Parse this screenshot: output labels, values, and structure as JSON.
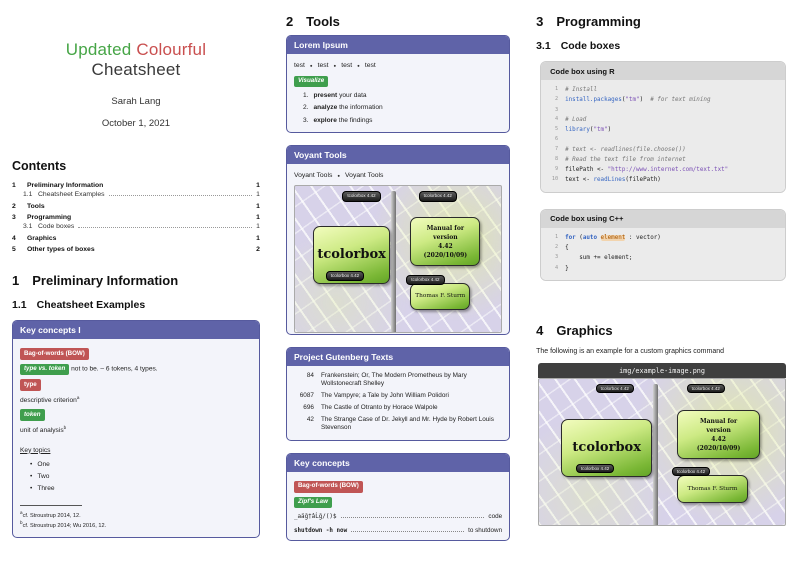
{
  "page": {
    "title_word1": "Updated",
    "title_word2": "Colourful",
    "title_line2": "Cheatsheet",
    "author": "Sarah Lang",
    "date": "October 1, 2021"
  },
  "contents": {
    "heading": "Contents",
    "entries": [
      {
        "num": "1",
        "label": "Preliminary Information",
        "page": "1"
      },
      {
        "num": "1.1",
        "label": "Cheatsheet Examples",
        "page": "1"
      },
      {
        "num": "2",
        "label": "Tools",
        "page": "1"
      },
      {
        "num": "3",
        "label": "Programming",
        "page": "1"
      },
      {
        "num": "3.1",
        "label": "Code boxes",
        "page": "1"
      },
      {
        "num": "4",
        "label": "Graphics",
        "page": "1"
      },
      {
        "num": "5",
        "label": "Other types of boxes",
        "page": "2"
      }
    ]
  },
  "section1": {
    "number": "1",
    "title": "Preliminary Information",
    "sub_number": "1.1",
    "sub_title": "Cheatsheet Examples"
  },
  "key_concepts_1": {
    "title": "Key concepts I",
    "badge_bow": "Bag-of-words (BOW)",
    "badge_type_token": "type vs. token",
    "type_token_text": "not to be. – 6 tokens, 4 types.",
    "badge_type": "type",
    "type_text": "descriptive criterion",
    "type_fn_mark": "a",
    "badge_token": "token",
    "token_text": "unit of analysis",
    "token_fn_mark": "b",
    "key_topics_label": "Key topics",
    "topics": [
      "One",
      "Two",
      "Three"
    ],
    "footnote_a_mark": "a",
    "footnote_a": "cf. Stroustrup 2014, 12.",
    "footnote_b_mark": "b",
    "footnote_b": "cf. Stroustrup 2014; Wu 2016, 12."
  },
  "section2": {
    "number": "2",
    "title": "Tools"
  },
  "lorem_box": {
    "title": "Lorem Ipsum",
    "test_items": [
      "test",
      "test",
      "test",
      "test"
    ],
    "badge_visualize": "Visualize",
    "steps": [
      {
        "num": "1.",
        "bold": "present",
        "rest": " your data"
      },
      {
        "num": "2.",
        "bold": "analyze",
        "rest": " the information"
      },
      {
        "num": "3.",
        "bold": "explore",
        "rest": " the findings"
      }
    ]
  },
  "voyant_box": {
    "title": "Voyant Tools",
    "links": [
      "Voyant Tools",
      "Voyant Tools"
    ]
  },
  "tcolorbox_image": {
    "main_label": "tcolorbox",
    "manual_line1": "Manual for",
    "manual_line2": "version",
    "manual_line3": "4.42",
    "manual_line4": "(2020/10/09)",
    "author": "Thomas F. Sturm",
    "pill1": "tcolorbox 4.42",
    "pill2": "tcolorbox 4.42",
    "pill3": "tcolorbox 4.42",
    "pill4": "tcolorbox 4.42"
  },
  "gutenberg_box": {
    "title": "Project Gutenberg Texts",
    "rows": [
      {
        "id": "84",
        "text": "Frankenstein; Or, The Modern Prometheus by Mary Wollstonecraft Shelley"
      },
      {
        "id": "6087",
        "text": "The Vampyre; a Tale by John William Polidori"
      },
      {
        "id": "696",
        "text": "The Castle of Otranto by Horace Walpole"
      },
      {
        "id": "42",
        "text": "The Strange Case of Dr. Jekyll and Mr. Hyde by Robert Louis Stevenson"
      }
    ]
  },
  "key_concepts_2": {
    "title": "Key concepts",
    "badge_bow": "Bag-of-words (BOW)",
    "badge_zipf": "Zipf's Law",
    "code_line_left": "_aäğ†âĹğ/()$",
    "code_line_right": "code",
    "shutdown_left": "shutdown -h now",
    "shutdown_right": "to shutdown"
  },
  "section3": {
    "number": "3",
    "title": "Programming",
    "sub_number": "3.1",
    "sub_title": "Code boxes"
  },
  "r_code": {
    "title": "Code box using R",
    "lines": [
      [
        [
          "c",
          "# Install"
        ]
      ],
      [
        [
          "f",
          "install.packages"
        ],
        [
          "p",
          "("
        ],
        [
          "s",
          "\"tm\""
        ],
        [
          "p",
          ")  "
        ],
        [
          "c",
          "# for text mining"
        ]
      ],
      [],
      [
        [
          "c",
          "# Load"
        ]
      ],
      [
        [
          "f",
          "library"
        ],
        [
          "p",
          "("
        ],
        [
          "s",
          "\"tm\""
        ],
        [
          "p",
          ")"
        ]
      ],
      [],
      [
        [
          "c",
          "# text <- readlines(file.choose())"
        ]
      ],
      [
        [
          "c",
          "# Read the text file from internet"
        ]
      ],
      [
        [
          "p",
          "filePath <- "
        ],
        [
          "s",
          "\"http://www.internet.com/text.txt\""
        ]
      ],
      [
        [
          "p",
          "text <- "
        ],
        [
          "f",
          "readLines"
        ],
        [
          "p",
          "(filePath)"
        ]
      ]
    ]
  },
  "cpp_code": {
    "title": "Code box using C++",
    "lines": [
      [
        [
          "k",
          "for"
        ],
        [
          "p",
          " ("
        ],
        [
          "k",
          "auto"
        ],
        [
          "p",
          " "
        ],
        [
          "hl",
          "element"
        ],
        [
          "p",
          " : vector)"
        ]
      ],
      [
        [
          "p",
          "{"
        ]
      ],
      [
        [
          "p",
          "    sum += element;"
        ]
      ],
      [
        [
          "p",
          "}"
        ]
      ]
    ]
  },
  "section4": {
    "number": "4",
    "title": "Graphics",
    "caption": "The following is an example for a custom graphics command",
    "image_path": "img/example-image.png"
  }
}
